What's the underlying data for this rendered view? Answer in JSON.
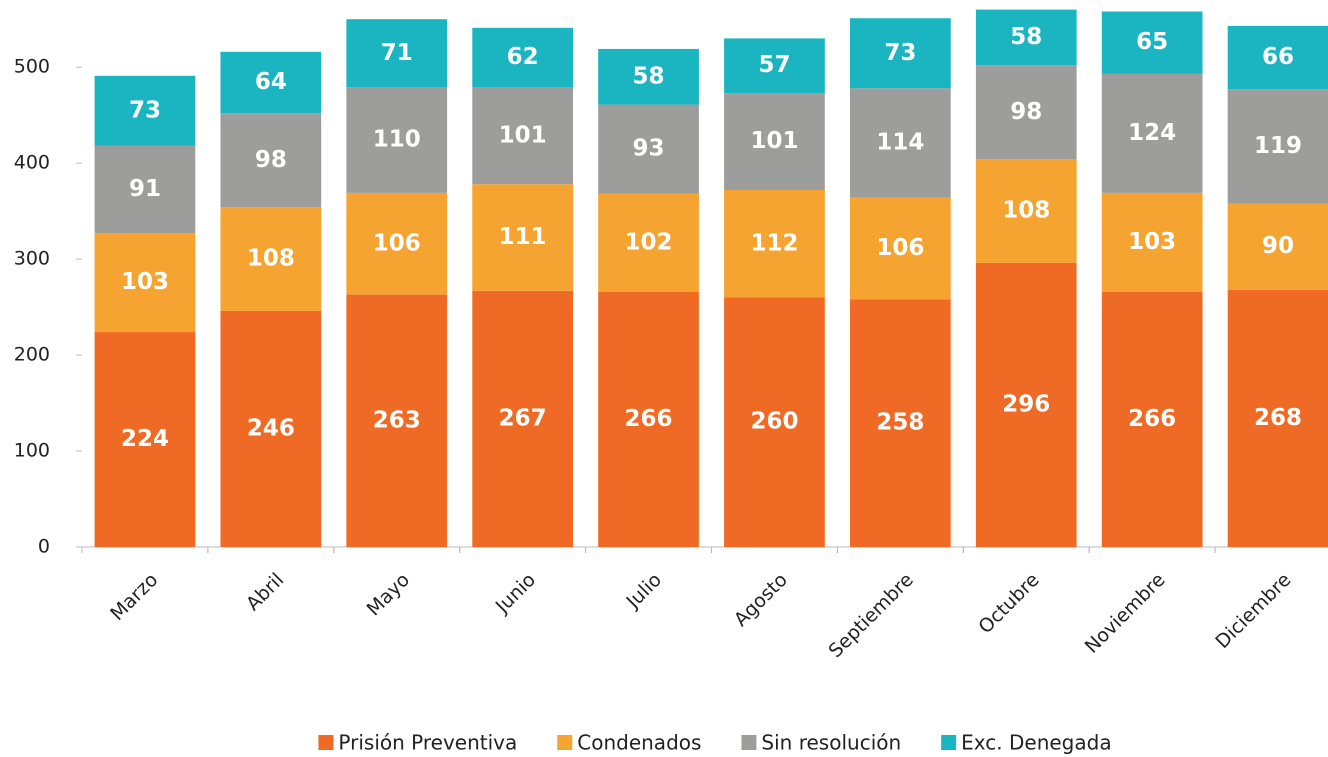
{
  "chart_data": {
    "type": "stacked_bar",
    "categories": [
      "Marzo",
      "Abril",
      "Mayo",
      "Junio",
      "Julio",
      "Agosto",
      "Septiembre",
      "Octubre",
      "Noviembre",
      "Diciembre"
    ],
    "series": [
      {
        "name": "Prisión Preventiva",
        "color": "#ef6a25",
        "values": [
          224,
          246,
          263,
          267,
          266,
          260,
          258,
          296,
          266,
          268
        ]
      },
      {
        "name": "Condenados",
        "color": "#f5a331",
        "values": [
          103,
          108,
          106,
          111,
          102,
          112,
          106,
          108,
          103,
          90
        ]
      },
      {
        "name": "Sin resolución",
        "color": "#9d9d9c",
        "values": [
          91,
          98,
          110,
          101,
          93,
          101,
          114,
          98,
          124,
          119
        ]
      },
      {
        "name": "Exc. Denegada",
        "color": "#1bb5c2",
        "values": [
          73,
          64,
          71,
          62,
          58,
          57,
          73,
          58,
          65,
          66
        ]
      }
    ],
    "ylim": [
      0,
      570
    ],
    "yticks": [
      0,
      100,
      200,
      300,
      400,
      500
    ],
    "grid": false,
    "legend": "bottom"
  }
}
